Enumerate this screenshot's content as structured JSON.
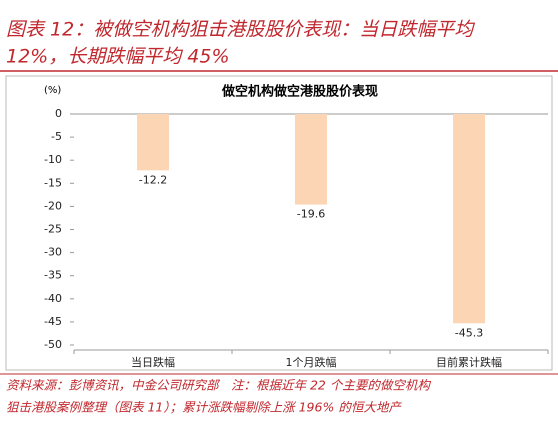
{
  "chart_data": {
    "type": "bar",
    "title": [
      "图表 12：被做空机构狙击港股股价表现：当日跌幅平均",
      "12%，长期跌幅平均 45%"
    ],
    "subtitle": "做空机构做空港股股价表现",
    "y_label": "(%)",
    "categories": [
      "当日跌幅",
      "1个月跌幅",
      "目前累计跌幅"
    ],
    "values": [
      -12.2,
      -19.6,
      -45.3
    ],
    "color": "#fcd5b4",
    "ylim": [
      -50,
      0
    ],
    "yticks": [
      0,
      -5,
      -10,
      -15,
      -20,
      -25,
      -30,
      -35,
      -40,
      -45,
      -50
    ],
    "source": [
      "资料来源：彭博资讯，中金公司研究部　注：根据近年 22 个主要的做空机构",
      "狙击港股案例整理（图表 11）；累计涨跌幅剔除上涨 196% 的恒大地产"
    ]
  }
}
